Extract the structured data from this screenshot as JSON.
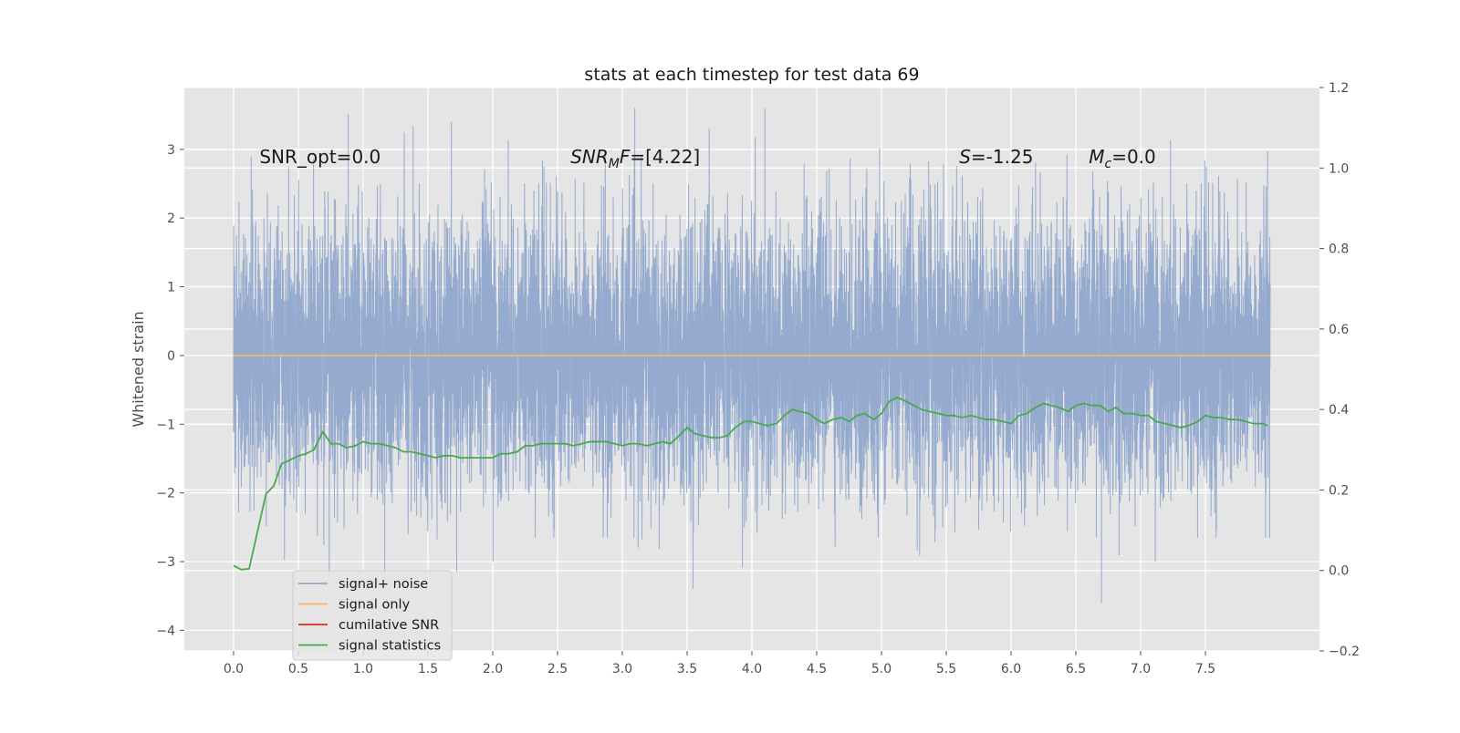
{
  "chart_data": {
    "type": "line",
    "title": "stats at each timestep for test data 69",
    "ylabel": "Whitened strain",
    "x_range": [
      -0.38,
      8.38
    ],
    "y_left_range": [
      -4.3,
      3.9
    ],
    "y_right_range": [
      -0.2,
      1.2
    ],
    "x_ticks": [
      0.0,
      0.5,
      1.0,
      1.5,
      2.0,
      2.5,
      3.0,
      3.5,
      4.0,
      4.5,
      5.0,
      5.5,
      6.0,
      6.5,
      7.0,
      7.5
    ],
    "x_tick_labels": [
      "0.0",
      "0.5",
      "1.0",
      "1.5",
      "2.0",
      "2.5",
      "3.0",
      "3.5",
      "4.0",
      "4.5",
      "5.0",
      "5.5",
      "6.0",
      "6.5",
      "7.0",
      "7.5"
    ],
    "y_left_ticks": [
      -4,
      -3,
      -2,
      -1,
      0,
      1,
      2,
      3
    ],
    "y_left_tick_labels": [
      "−4",
      "−3",
      "−2",
      "−1",
      "0",
      "1",
      "2",
      "3"
    ],
    "y_right_ticks": [
      -0.2,
      0.0,
      0.2,
      0.4,
      0.6,
      0.8,
      1.0,
      1.2
    ],
    "y_right_tick_labels": [
      "−0.2",
      "0.0",
      "0.2",
      "0.4",
      "0.6",
      "0.8",
      "1.0",
      "1.2"
    ],
    "grid": true,
    "legend_placement": "lower-left",
    "annotations": [
      {
        "text": "SNR_opt=0.0",
        "x": 0.2,
        "y": 2.8
      },
      {
        "text": "SNR_MF=[4.22]",
        "x": 2.6,
        "y": 2.8
      },
      {
        "text": "S=-1.25",
        "x": 5.6,
        "y": 2.8
      },
      {
        "text": "M_c=0.0",
        "x": 6.6,
        "y": 2.8
      }
    ],
    "series": [
      {
        "name": "signal+ noise",
        "color": "#8fa6cc",
        "axis": "left",
        "x_range": [
          0.0,
          8.0
        ],
        "samples": 8192,
        "distribution": "whitened gaussian noise, mean 0, std 1, min -3.6, max 3.6"
      },
      {
        "name": "signal only",
        "color": "#f0b95a",
        "axis": "left",
        "x": [
          0.0,
          8.0
        ],
        "y": [
          0.0,
          0.0
        ]
      },
      {
        "name": "cumilative SNR",
        "color": "#d62d20",
        "axis": "right",
        "x": [],
        "y": []
      },
      {
        "name": "signal statistics",
        "color": "#4aa84f",
        "axis": "right",
        "x": [
          0.0,
          0.06,
          0.12,
          0.18,
          0.25,
          0.31,
          0.37,
          0.44,
          0.5,
          0.56,
          0.62,
          0.69,
          0.75,
          0.81,
          0.87,
          0.94,
          1.0,
          1.06,
          1.12,
          1.19,
          1.25,
          1.31,
          1.37,
          1.44,
          1.5,
          1.56,
          1.62,
          1.69,
          1.75,
          1.81,
          1.87,
          1.94,
          2.0,
          2.06,
          2.12,
          2.19,
          2.25,
          2.31,
          2.37,
          2.44,
          2.5,
          2.56,
          2.62,
          2.69,
          2.75,
          2.81,
          2.87,
          2.94,
          3.0,
          3.06,
          3.12,
          3.19,
          3.25,
          3.31,
          3.37,
          3.44,
          3.5,
          3.56,
          3.62,
          3.69,
          3.75,
          3.81,
          3.87,
          3.94,
          4.0,
          4.06,
          4.12,
          4.19,
          4.25,
          4.31,
          4.37,
          4.44,
          4.5,
          4.56,
          4.62,
          4.69,
          4.75,
          4.81,
          4.87,
          4.94,
          5.0,
          5.06,
          5.12,
          5.19,
          5.25,
          5.31,
          5.37,
          5.44,
          5.5,
          5.56,
          5.62,
          5.69,
          5.75,
          5.81,
          5.87,
          5.94,
          6.0,
          6.06,
          6.12,
          6.19,
          6.25,
          6.31,
          6.37,
          6.44,
          6.5,
          6.56,
          6.62,
          6.69,
          6.75,
          6.81,
          6.87,
          6.94,
          7.0,
          7.06,
          7.12,
          7.19,
          7.25,
          7.31,
          7.37,
          7.44,
          7.5,
          7.56,
          7.62,
          7.69,
          7.75,
          7.81,
          7.87,
          7.94,
          7.98
        ],
        "y": [
          0.012,
          0.002,
          0.004,
          0.09,
          0.19,
          0.21,
          0.265,
          0.275,
          0.285,
          0.29,
          0.3,
          0.345,
          0.315,
          0.315,
          0.305,
          0.31,
          0.32,
          0.315,
          0.315,
          0.31,
          0.305,
          0.295,
          0.295,
          0.29,
          0.285,
          0.28,
          0.285,
          0.285,
          0.28,
          0.28,
          0.28,
          0.28,
          0.28,
          0.29,
          0.29,
          0.295,
          0.31,
          0.31,
          0.315,
          0.315,
          0.315,
          0.315,
          0.31,
          0.315,
          0.32,
          0.32,
          0.32,
          0.315,
          0.31,
          0.315,
          0.315,
          0.31,
          0.315,
          0.32,
          0.315,
          0.335,
          0.355,
          0.34,
          0.335,
          0.33,
          0.33,
          0.335,
          0.355,
          0.37,
          0.37,
          0.365,
          0.36,
          0.365,
          0.385,
          0.4,
          0.395,
          0.39,
          0.375,
          0.365,
          0.375,
          0.38,
          0.37,
          0.385,
          0.39,
          0.375,
          0.39,
          0.42,
          0.43,
          0.42,
          0.41,
          0.4,
          0.395,
          0.39,
          0.385,
          0.385,
          0.38,
          0.385,
          0.38,
          0.375,
          0.375,
          0.37,
          0.365,
          0.385,
          0.39,
          0.405,
          0.415,
          0.41,
          0.405,
          0.395,
          0.41,
          0.415,
          0.41,
          0.41,
          0.395,
          0.405,
          0.39,
          0.39,
          0.385,
          0.385,
          0.37,
          0.365,
          0.36,
          0.355,
          0.36,
          0.37,
          0.385,
          0.38,
          0.38,
          0.375,
          0.375,
          0.37,
          0.365,
          0.365,
          0.36
        ]
      }
    ]
  }
}
